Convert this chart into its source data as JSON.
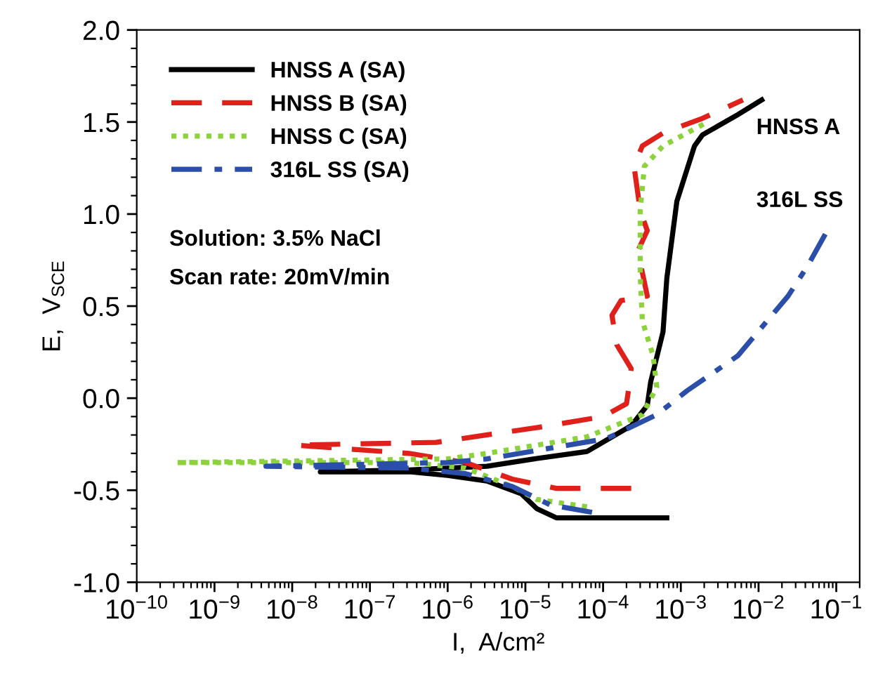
{
  "chart_data": {
    "type": "line",
    "xlabel": "I,  A/cm²",
    "ylabel": "E,  V$_{SCE}$",
    "log": "x",
    "xlim": [
      1e-10,
      0.2
    ],
    "ylim": [
      -1.0,
      2.0
    ],
    "xticks": [
      {
        "value": 1e-10,
        "label": "10$^{−10}$"
      },
      {
        "value": 1e-09,
        "label": "10$^{−9}$"
      },
      {
        "value": 1e-08,
        "label": "10$^{−8}$"
      },
      {
        "value": 1e-07,
        "label": "10$^{−7}$"
      },
      {
        "value": 1e-06,
        "label": "10$^{−6}$"
      },
      {
        "value": 1e-05,
        "label": "10$^{−5}$"
      },
      {
        "value": 0.0001,
        "label": "10$^{−4}$"
      },
      {
        "value": 0.001,
        "label": "10$^{−3}$"
      },
      {
        "value": 0.01,
        "label": "10$^{−2}$"
      },
      {
        "value": 0.1,
        "label": "10$^{−1}$"
      }
    ],
    "yticks": [
      {
        "value": -1.0,
        "label": "-1.0"
      },
      {
        "value": -0.5,
        "label": "-0.5"
      },
      {
        "value": 0.0,
        "label": "0.0"
      },
      {
        "value": 0.5,
        "label": "0.5"
      },
      {
        "value": 1.0,
        "label": "1.0"
      },
      {
        "value": 1.5,
        "label": "1.5"
      },
      {
        "value": 2.0,
        "label": "2.0"
      }
    ],
    "grid": false,
    "legend": "top left",
    "marker": "none",
    "series": [
      {
        "name": "HNSS A (SA)",
        "color": "#000000",
        "line_style": "solid",
        "x": [
          0.00066,
          2.5e-05,
          1.4e-05,
          8.9e-06,
          3.2e-06,
          1e-06,
          3.2e-07,
          2.3e-08,
          3.2e-07,
          3.2e-06,
          1.3e-05,
          6.2e-05,
          0.00023,
          0.00037,
          0.00041,
          0.00059,
          0.00066,
          0.00089,
          0.0015,
          0.0019,
          0.0054,
          0.011
        ],
        "values": [
          -0.65,
          -0.65,
          -0.6,
          -0.52,
          -0.45,
          -0.42,
          -0.4,
          -0.4,
          -0.39,
          -0.37,
          -0.33,
          -0.29,
          -0.15,
          -0.04,
          0.09,
          0.36,
          0.65,
          1.07,
          1.37,
          1.43,
          1.54,
          1.62
        ]
      },
      {
        "name": "HNSS B (SA)",
        "color": "#e0201b",
        "line_style": "dashed",
        "x": [
          0.00023,
          2.5e-05,
          6.8e-06,
          1.7e-06,
          3.2e-07,
          1.1e-08,
          7.1e-07,
          1.4e-05,
          0.0001,
          0.0002,
          0.00022,
          0.00023,
          0.00015,
          0.00013,
          0.00017,
          0.00037,
          0.00028,
          0.00037,
          0.0003,
          0.00025,
          0.00032,
          0.00059,
          0.0019,
          0.0063
        ],
        "values": [
          -0.49,
          -0.49,
          -0.44,
          -0.35,
          -0.3,
          -0.255,
          -0.24,
          -0.16,
          -0.1,
          -0.03,
          0.09,
          0.16,
          0.29,
          0.45,
          0.53,
          0.555,
          0.8,
          0.91,
          1.02,
          1.26,
          1.37,
          1.44,
          1.52,
          1.62
        ]
      },
      {
        "name": "HNSS C (SA)",
        "color": "#8cd23c",
        "line_style": "dotted",
        "x": [
          6.2e-05,
          1.4e-05,
          6.8e-06,
          1.7e-06,
          3.2e-07,
          3.2e-10,
          1e-06,
          3.2e-06,
          6.2e-05,
          0.00032,
          0.00049,
          0.00044,
          0.00032,
          0.0003,
          0.0003,
          0.00034,
          0.00059,
          0.0022
        ],
        "values": [
          -0.59,
          -0.55,
          -0.48,
          -0.38,
          -0.35,
          -0.35,
          -0.33,
          -0.3,
          -0.21,
          -0.09,
          0.06,
          0.23,
          0.42,
          0.67,
          1.02,
          1.26,
          1.37,
          1.5
        ]
      },
      {
        "name": "316L SS (SA)",
        "color": "#2b4fa8",
        "line_style": "dashdot",
        "x": [
          7.2e-05,
          2.1e-05,
          6.8e-06,
          1.7e-06,
          3.2e-07,
          4.6e-09,
          1e-06,
          3.2e-06,
          0.00011,
          0.00049,
          0.0012,
          0.0054,
          0.024,
          0.043,
          0.079
        ],
        "values": [
          -0.62,
          -0.58,
          -0.48,
          -0.41,
          -0.38,
          -0.37,
          -0.35,
          -0.33,
          -0.22,
          -0.09,
          0.04,
          0.23,
          0.555,
          0.72,
          0.92
        ]
      }
    ],
    "annotations": [
      "Solution: 3.5% NaCl",
      "Scan rate: 20mV/min",
      "HNSS A",
      "316L SS"
    ]
  }
}
